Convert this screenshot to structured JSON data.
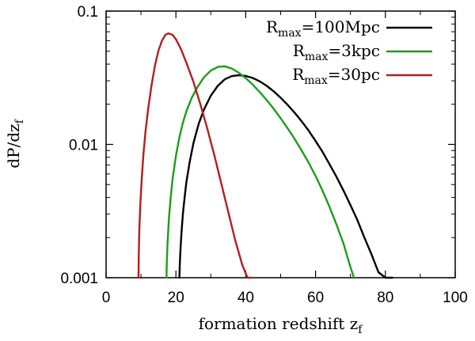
{
  "chart_data": {
    "type": "line",
    "title": "",
    "xlabel": "formation redshift z",
    "xlabel_sub": "f",
    "ylabel": "dP/dz",
    "ylabel_sub": "f",
    "xlim": [
      0,
      100
    ],
    "ylim": [
      0.001,
      0.1
    ],
    "yscale": "log",
    "xticks": [
      0,
      20,
      40,
      60,
      80,
      100
    ],
    "yticks": [
      0.001,
      0.01,
      0.1
    ],
    "ytick_labels": [
      "0.001",
      "0.01",
      "0.1"
    ],
    "grid": false,
    "legend_position": "top-right",
    "series": [
      {
        "name": "Rmax=100Mpc",
        "name_prefix": "R",
        "name_sub": "max",
        "name_suffix": "=100Mpc",
        "color": "#000000",
        "x": [
          21.0,
          21.1,
          21.3,
          21.6,
          22.0,
          22.5,
          23.0,
          24.0,
          25.0,
          26.5,
          28.0,
          30.0,
          32.0,
          34.0,
          36.0,
          38.0,
          40.0,
          42.0,
          44.0,
          46.0,
          48.0,
          50.0,
          52.0,
          54.0,
          56.0,
          58.0,
          60.0,
          62.0,
          64.0,
          66.0,
          68.0,
          70.0,
          72.0,
          74.0,
          76.0,
          78.0,
          80.0,
          81.0,
          82.0
        ],
        "y": [
          0.001,
          0.00125,
          0.0016,
          0.0022,
          0.003,
          0.004,
          0.0052,
          0.0075,
          0.0102,
          0.0142,
          0.0182,
          0.0232,
          0.0275,
          0.0308,
          0.0325,
          0.033,
          0.0326,
          0.0315,
          0.0297,
          0.0275,
          0.025,
          0.0224,
          0.0198,
          0.0173,
          0.0149,
          0.0127,
          0.0106,
          0.0088,
          0.0071,
          0.0057,
          0.0045,
          0.0035,
          0.0027,
          0.002,
          0.0015,
          0.0011,
          0.001,
          0.001,
          0.001
        ]
      },
      {
        "name": "Rmax=3kpc",
        "name_prefix": "R",
        "name_sub": "max",
        "name_suffix": "=3kpc",
        "color": "#1a9e1a",
        "x": [
          17.3,
          17.4,
          17.6,
          18.0,
          18.5,
          19.0,
          20.0,
          21.0,
          22.0,
          23.0,
          24.5,
          26.0,
          28.0,
          30.0,
          32.0,
          34.0,
          36.0,
          38.0,
          40.0,
          42.0,
          44.0,
          46.0,
          48.0,
          50.0,
          52.0,
          54.0,
          56.0,
          58.0,
          60.0,
          62.0,
          64.0,
          66.0,
          68.0,
          70.0,
          71.0
        ],
        "y": [
          0.001,
          0.0013,
          0.0018,
          0.0028,
          0.004,
          0.0054,
          0.0082,
          0.0113,
          0.0145,
          0.0177,
          0.0222,
          0.0265,
          0.0318,
          0.0358,
          0.0381,
          0.0385,
          0.0371,
          0.0345,
          0.0314,
          0.0281,
          0.0247,
          0.0215,
          0.0185,
          0.0157,
          0.0132,
          0.011,
          0.009,
          0.0073,
          0.0058,
          0.0045,
          0.0034,
          0.0025,
          0.0018,
          0.0012,
          0.001
        ]
      },
      {
        "name": "Rmax=30pc",
        "name_prefix": "R",
        "name_sub": "max",
        "name_suffix": "=30pc",
        "color": "#b51d1d",
        "x": [
          9.3,
          9.35,
          9.5,
          9.8,
          10.2,
          10.7,
          11.3,
          12.0,
          13.0,
          14.0,
          15.0,
          16.0,
          17.0,
          17.8,
          19.0,
          20.0,
          21.5,
          23.0,
          25.0,
          27.0,
          29.0,
          31.0,
          33.0,
          35.0,
          37.0,
          39.0,
          40.5,
          41.5
        ],
        "y": [
          0.001,
          0.0014,
          0.0022,
          0.0035,
          0.0055,
          0.0085,
          0.0125,
          0.018,
          0.0275,
          0.039,
          0.0505,
          0.06,
          0.0665,
          0.068,
          0.0665,
          0.0615,
          0.0515,
          0.041,
          0.0295,
          0.02,
          0.0131,
          0.0083,
          0.0051,
          0.0031,
          0.0019,
          0.00125,
          0.001,
          0.001
        ]
      }
    ]
  }
}
